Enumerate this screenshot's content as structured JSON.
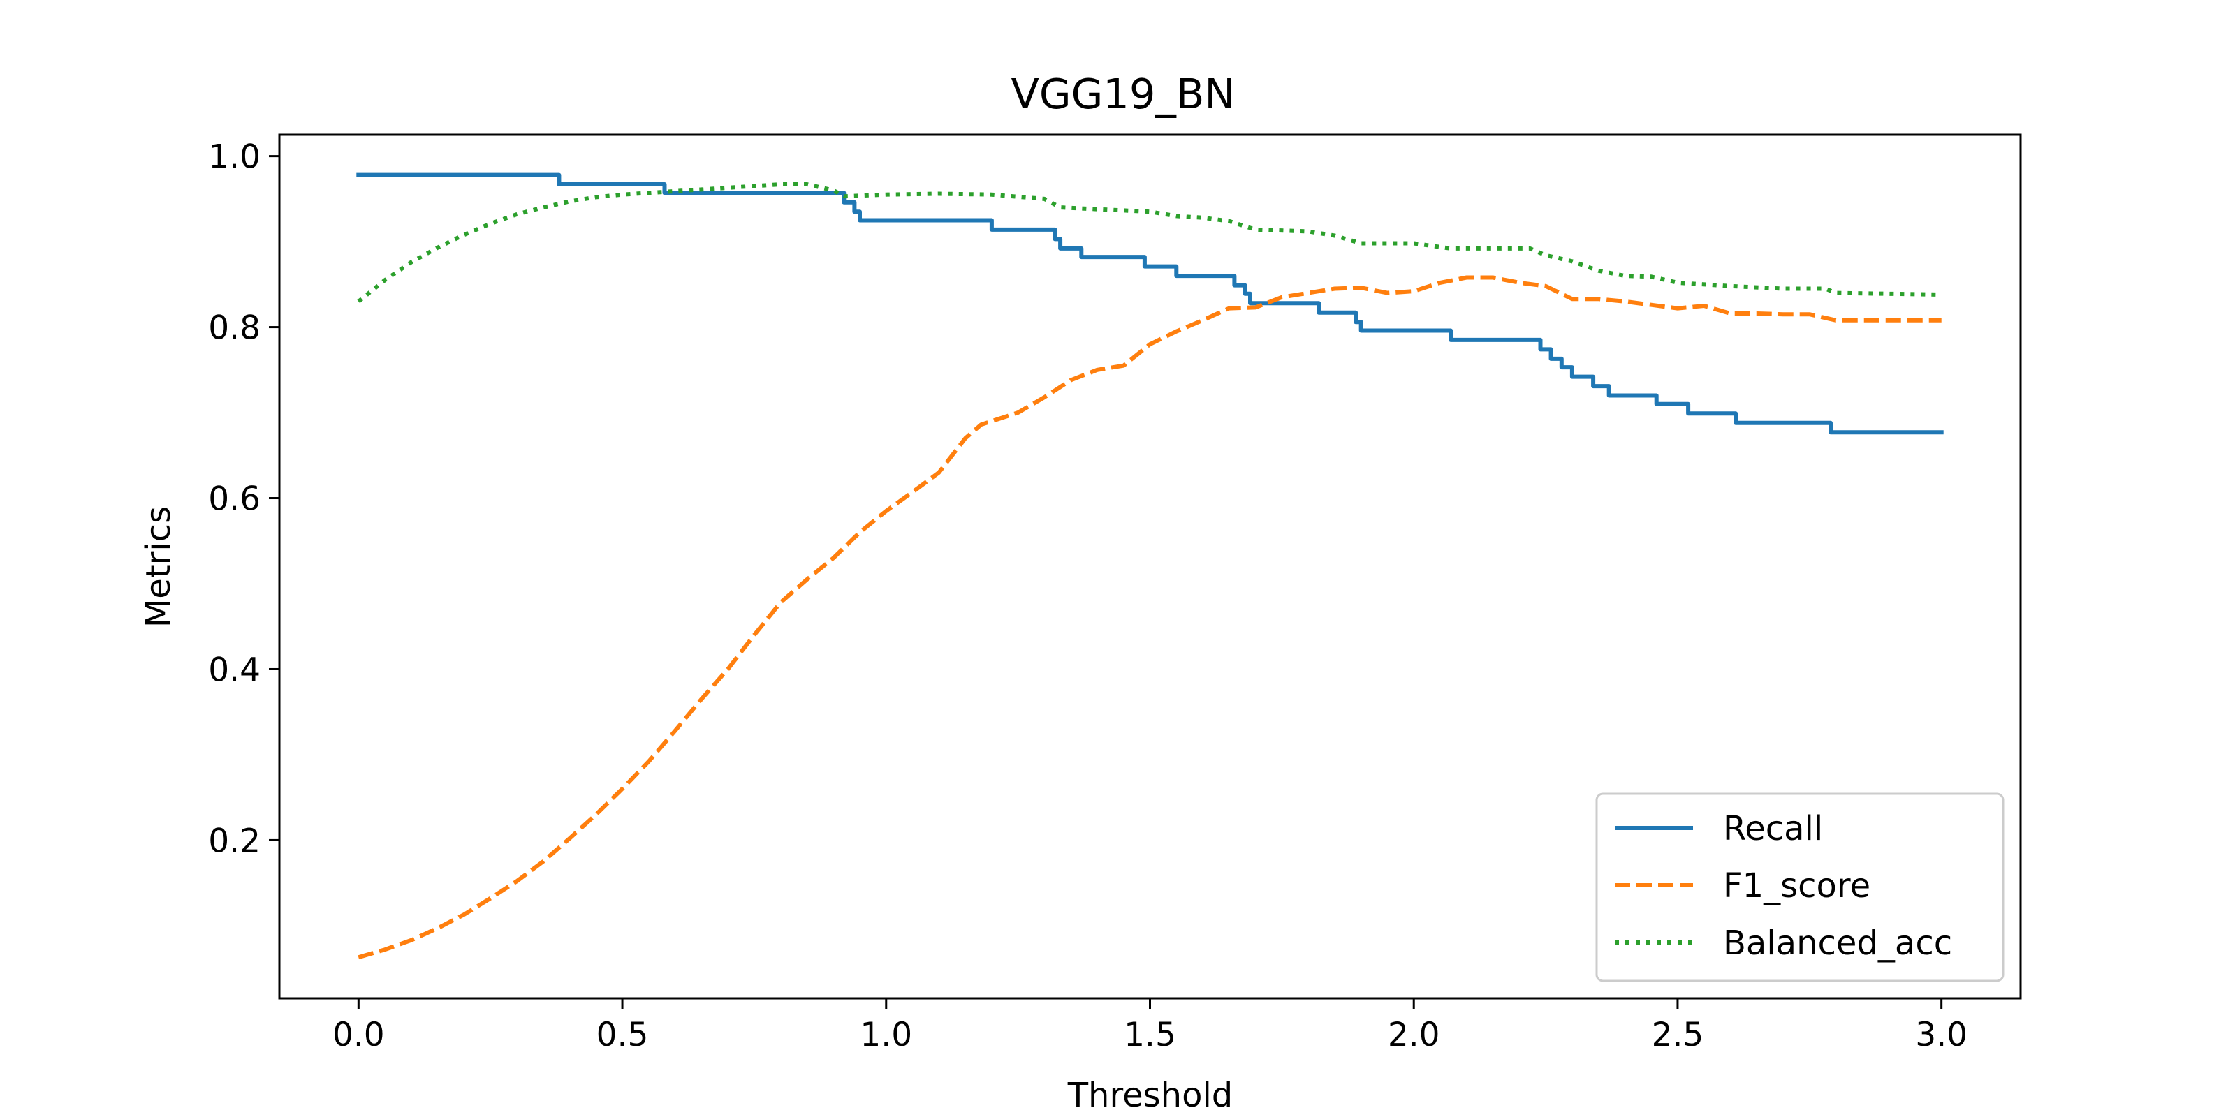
{
  "chart_data": {
    "type": "line",
    "title": "VGG19_BN",
    "xlabel": "Threshold",
    "ylabel": "Metrics",
    "xlim": [
      -0.15,
      3.15
    ],
    "ylim": [
      0.015,
      1.025
    ],
    "xticks": [
      0.0,
      0.5,
      1.0,
      1.5,
      2.0,
      2.5,
      3.0
    ],
    "xtick_labels": [
      "0.0",
      "0.5",
      "1.0",
      "1.5",
      "2.0",
      "2.5",
      "3.0"
    ],
    "yticks": [
      0.2,
      0.4,
      0.6,
      0.8,
      1.0
    ],
    "ytick_labels": [
      "0.2",
      "0.4",
      "0.6",
      "0.8",
      "1.0"
    ],
    "grid": false,
    "legend_position": "lower-right",
    "series": [
      {
        "name": "Recall",
        "color": "#1f77b4",
        "style": "solid",
        "step": true,
        "points": [
          [
            0.0,
            0.978
          ],
          [
            0.37,
            0.978
          ],
          [
            0.38,
            0.967
          ],
          [
            0.57,
            0.967
          ],
          [
            0.58,
            0.957
          ],
          [
            0.9,
            0.957
          ],
          [
            0.92,
            0.946
          ],
          [
            0.94,
            0.935
          ],
          [
            0.95,
            0.925
          ],
          [
            1.19,
            0.925
          ],
          [
            1.2,
            0.914
          ],
          [
            1.3,
            0.914
          ],
          [
            1.32,
            0.903
          ],
          [
            1.33,
            0.892
          ],
          [
            1.36,
            0.892
          ],
          [
            1.37,
            0.882
          ],
          [
            1.48,
            0.882
          ],
          [
            1.49,
            0.871
          ],
          [
            1.54,
            0.871
          ],
          [
            1.55,
            0.86
          ],
          [
            1.64,
            0.86
          ],
          [
            1.66,
            0.849
          ],
          [
            1.68,
            0.839
          ],
          [
            1.69,
            0.828
          ],
          [
            1.81,
            0.828
          ],
          [
            1.82,
            0.817
          ],
          [
            1.88,
            0.817
          ],
          [
            1.89,
            0.806
          ],
          [
            1.9,
            0.796
          ],
          [
            2.06,
            0.796
          ],
          [
            2.07,
            0.785
          ],
          [
            2.22,
            0.785
          ],
          [
            2.24,
            0.774
          ],
          [
            2.26,
            0.763
          ],
          [
            2.28,
            0.753
          ],
          [
            2.3,
            0.742
          ],
          [
            2.33,
            0.742
          ],
          [
            2.34,
            0.731
          ],
          [
            2.36,
            0.731
          ],
          [
            2.37,
            0.72
          ],
          [
            2.45,
            0.72
          ],
          [
            2.46,
            0.71
          ],
          [
            2.51,
            0.71
          ],
          [
            2.52,
            0.699
          ],
          [
            2.6,
            0.699
          ],
          [
            2.61,
            0.688
          ],
          [
            2.78,
            0.688
          ],
          [
            2.79,
            0.677
          ],
          [
            3.0,
            0.677
          ]
        ]
      },
      {
        "name": "F1_score",
        "color": "#ff7f0e",
        "style": "dashed",
        "step": false,
        "points": [
          [
            0.0,
            0.063
          ],
          [
            0.05,
            0.072
          ],
          [
            0.1,
            0.083
          ],
          [
            0.15,
            0.097
          ],
          [
            0.2,
            0.113
          ],
          [
            0.25,
            0.132
          ],
          [
            0.3,
            0.152
          ],
          [
            0.35,
            0.175
          ],
          [
            0.4,
            0.202
          ],
          [
            0.45,
            0.23
          ],
          [
            0.5,
            0.26
          ],
          [
            0.55,
            0.292
          ],
          [
            0.6,
            0.328
          ],
          [
            0.65,
            0.365
          ],
          [
            0.7,
            0.4
          ],
          [
            0.75,
            0.44
          ],
          [
            0.8,
            0.478
          ],
          [
            0.85,
            0.505
          ],
          [
            0.9,
            0.53
          ],
          [
            0.95,
            0.56
          ],
          [
            1.0,
            0.585
          ],
          [
            1.05,
            0.607
          ],
          [
            1.1,
            0.63
          ],
          [
            1.15,
            0.67
          ],
          [
            1.18,
            0.686
          ],
          [
            1.2,
            0.69
          ],
          [
            1.25,
            0.7
          ],
          [
            1.3,
            0.718
          ],
          [
            1.35,
            0.738
          ],
          [
            1.4,
            0.75
          ],
          [
            1.45,
            0.755
          ],
          [
            1.5,
            0.78
          ],
          [
            1.55,
            0.795
          ],
          [
            1.6,
            0.808
          ],
          [
            1.65,
            0.822
          ],
          [
            1.7,
            0.823
          ],
          [
            1.75,
            0.835
          ],
          [
            1.8,
            0.84
          ],
          [
            1.85,
            0.845
          ],
          [
            1.9,
            0.846
          ],
          [
            1.95,
            0.84
          ],
          [
            2.0,
            0.842
          ],
          [
            2.05,
            0.852
          ],
          [
            2.1,
            0.858
          ],
          [
            2.15,
            0.858
          ],
          [
            2.2,
            0.852
          ],
          [
            2.25,
            0.848
          ],
          [
            2.3,
            0.833
          ],
          [
            2.35,
            0.833
          ],
          [
            2.4,
            0.83
          ],
          [
            2.45,
            0.826
          ],
          [
            2.5,
            0.822
          ],
          [
            2.55,
            0.825
          ],
          [
            2.6,
            0.816
          ],
          [
            2.65,
            0.816
          ],
          [
            2.7,
            0.815
          ],
          [
            2.75,
            0.815
          ],
          [
            2.8,
            0.808
          ],
          [
            2.85,
            0.808
          ],
          [
            2.9,
            0.808
          ],
          [
            3.0,
            0.808
          ]
        ]
      },
      {
        "name": "Balanced_acc",
        "color": "#2ca02c",
        "style": "dotted",
        "step": false,
        "points": [
          [
            0.0,
            0.83
          ],
          [
            0.05,
            0.855
          ],
          [
            0.1,
            0.876
          ],
          [
            0.15,
            0.893
          ],
          [
            0.2,
            0.908
          ],
          [
            0.25,
            0.921
          ],
          [
            0.3,
            0.932
          ],
          [
            0.35,
            0.94
          ],
          [
            0.4,
            0.947
          ],
          [
            0.45,
            0.952
          ],
          [
            0.5,
            0.955
          ],
          [
            0.55,
            0.957
          ],
          [
            0.6,
            0.959
          ],
          [
            0.65,
            0.961
          ],
          [
            0.7,
            0.963
          ],
          [
            0.75,
            0.965
          ],
          [
            0.8,
            0.967
          ],
          [
            0.85,
            0.967
          ],
          [
            0.9,
            0.96
          ],
          [
            0.92,
            0.953
          ],
          [
            1.0,
            0.955
          ],
          [
            1.1,
            0.956
          ],
          [
            1.2,
            0.955
          ],
          [
            1.3,
            0.95
          ],
          [
            1.33,
            0.94
          ],
          [
            1.4,
            0.938
          ],
          [
            1.5,
            0.935
          ],
          [
            1.55,
            0.93
          ],
          [
            1.6,
            0.928
          ],
          [
            1.65,
            0.924
          ],
          [
            1.7,
            0.914
          ],
          [
            1.8,
            0.912
          ],
          [
            1.85,
            0.907
          ],
          [
            1.9,
            0.898
          ],
          [
            2.0,
            0.898
          ],
          [
            2.07,
            0.892
          ],
          [
            2.22,
            0.892
          ],
          [
            2.25,
            0.884
          ],
          [
            2.3,
            0.877
          ],
          [
            2.35,
            0.866
          ],
          [
            2.4,
            0.86
          ],
          [
            2.45,
            0.859
          ],
          [
            2.5,
            0.852
          ],
          [
            2.6,
            0.848
          ],
          [
            2.7,
            0.845
          ],
          [
            2.78,
            0.845
          ],
          [
            2.8,
            0.84
          ],
          [
            3.0,
            0.838
          ]
        ]
      }
    ]
  }
}
